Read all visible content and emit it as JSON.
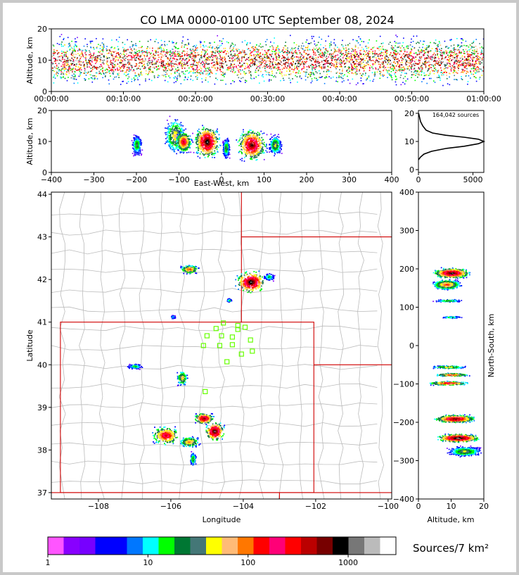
{
  "title": "CO LMA 0000-0100 UTC September 08, 2024",
  "colors": {
    "palette": [
      "#ff55ff",
      "#8800ff",
      "#7700ff",
      "#0000ff",
      "#0000ff",
      "#0077ff",
      "#00ffff",
      "#00ff00",
      "#007733",
      "#447777",
      "#ffff00",
      "#ffbb77",
      "#ff7700",
      "#ff0000",
      "#ff0077",
      "#ff0000",
      "#bb0000",
      "#770000",
      "#000000",
      "#777777",
      "#bbbbbb",
      "#ffffff"
    ],
    "state_line": "#d00000",
    "county_line": "#bbbbbb",
    "station": "#66ff00"
  },
  "chart_data": [
    {
      "type": "heatmap",
      "panel": "time-altitude",
      "ylabel": "Altitude, km",
      "xlim": [
        "00:00:00",
        "01:00:00"
      ],
      "ylim": [
        0,
        20
      ],
      "x_ticks": [
        "00:00:00",
        "00:10:00",
        "00:20:00",
        "00:30:00",
        "00:40:00",
        "00:50:00",
        "01:00:00"
      ],
      "y_ticks": [
        "0",
        "10",
        "20"
      ]
    },
    {
      "type": "heatmap",
      "panel": "east-west-altitude",
      "xlabel": "East-West, km",
      "ylabel": "Altitude, km",
      "xlim": [
        -400,
        400
      ],
      "ylim": [
        0,
        20
      ],
      "x_ticks": [
        "−400",
        "−300",
        "−200",
        "−100",
        "0",
        "100",
        "200",
        "300",
        "400"
      ],
      "y_ticks": [
        "0",
        "10",
        "20"
      ],
      "clusters": [
        {
          "x": -200,
          "z": 9,
          "w": 14,
          "h": 4,
          "level": 0.45
        },
        {
          "x": -110,
          "z": 12,
          "w": 30,
          "h": 7,
          "level": 0.55
        },
        {
          "x": -90,
          "z": 10,
          "w": 22,
          "h": 4,
          "level": 0.75
        },
        {
          "x": -35,
          "z": 10,
          "w": 35,
          "h": 6,
          "level": 0.9
        },
        {
          "x": 10,
          "z": 8,
          "w": 10,
          "h": 4,
          "level": 0.45
        },
        {
          "x": 70,
          "z": 9,
          "w": 40,
          "h": 6,
          "level": 0.85
        },
        {
          "x": 125,
          "z": 9,
          "w": 18,
          "h": 4,
          "level": 0.5
        }
      ]
    },
    {
      "type": "line",
      "panel": "altitude-histogram",
      "annotation": "164,042 sources",
      "xlim": [
        0,
        6000
      ],
      "ylim": [
        0,
        20
      ],
      "x_ticks": [
        "0",
        "5000"
      ],
      "y_ticks": [
        "0",
        "10",
        "20"
      ],
      "points": [
        [
          0,
          3.5
        ],
        [
          200,
          4.5
        ],
        [
          500,
          5.5
        ],
        [
          1200,
          6.5
        ],
        [
          2500,
          7.5
        ],
        [
          4200,
          8.3
        ],
        [
          5500,
          9.2
        ],
        [
          6000,
          10
        ],
        [
          5500,
          10.8
        ],
        [
          4200,
          11.5
        ],
        [
          2500,
          12.2
        ],
        [
          1300,
          13
        ],
        [
          700,
          14
        ],
        [
          400,
          15.5
        ],
        [
          200,
          17
        ],
        [
          80,
          19
        ],
        [
          20,
          20
        ]
      ]
    },
    {
      "type": "heatmap",
      "panel": "plan-view",
      "xlabel": "Longitude",
      "ylabel": "Latitude",
      "xlim": [
        -109.3,
        -99.9
      ],
      "ylim": [
        36.85,
        44.05
      ],
      "x_ticks": [
        "−108",
        "−106",
        "−104",
        "−102",
        "−100"
      ],
      "y_ticks": [
        "37",
        "38",
        "39",
        "40",
        "41",
        "42",
        "43",
        "44"
      ],
      "clusters": [
        {
          "lon": -105.5,
          "lat": 42.25,
          "w": 0.3,
          "h": 0.12,
          "level": 0.65
        },
        {
          "lon": -103.8,
          "lat": 41.95,
          "w": 0.45,
          "h": 0.3,
          "level": 0.9
        },
        {
          "lon": -103.3,
          "lat": 42.07,
          "w": 0.18,
          "h": 0.1,
          "level": 0.4
        },
        {
          "lon": -104.4,
          "lat": 41.52,
          "w": 0.08,
          "h": 0.05,
          "level": 0.4
        },
        {
          "lon": -105.95,
          "lat": 41.13,
          "w": 0.08,
          "h": 0.05,
          "level": 0.35
        },
        {
          "lon": -107.0,
          "lat": 39.97,
          "w": 0.25,
          "h": 0.08,
          "level": 0.4
        },
        {
          "lon": -105.7,
          "lat": 39.7,
          "w": 0.18,
          "h": 0.22,
          "level": 0.55
        },
        {
          "lon": -106.15,
          "lat": 38.35,
          "w": 0.45,
          "h": 0.25,
          "level": 0.75
        },
        {
          "lon": -105.1,
          "lat": 38.75,
          "w": 0.3,
          "h": 0.15,
          "level": 0.85
        },
        {
          "lon": -104.8,
          "lat": 38.45,
          "w": 0.3,
          "h": 0.25,
          "level": 0.9
        },
        {
          "lon": -105.5,
          "lat": 38.2,
          "w": 0.35,
          "h": 0.15,
          "level": 0.6
        },
        {
          "lon": -105.4,
          "lat": 37.8,
          "w": 0.1,
          "h": 0.2,
          "level": 0.45
        }
      ],
      "stations": [
        [
          -104.55,
          40.98
        ],
        [
          -104.15,
          40.92
        ],
        [
          -103.95,
          40.88
        ],
        [
          -104.75,
          40.85
        ],
        [
          -104.15,
          40.83
        ],
        [
          -105.0,
          40.68
        ],
        [
          -104.6,
          40.68
        ],
        [
          -104.3,
          40.65
        ],
        [
          -103.8,
          40.58
        ],
        [
          -104.65,
          40.45
        ],
        [
          -104.3,
          40.47
        ],
        [
          -105.1,
          40.45
        ],
        [
          -103.75,
          40.32
        ],
        [
          -104.05,
          40.25
        ],
        [
          -104.45,
          40.07
        ],
        [
          -105.05,
          39.37
        ]
      ]
    },
    {
      "type": "heatmap",
      "panel": "altitude-north-south",
      "xlabel": "Altitude, km",
      "ylabel": "North-South, km",
      "xlim": [
        0,
        20
      ],
      "ylim": [
        -400,
        400
      ],
      "x_ticks": [
        "0",
        "10",
        "20"
      ],
      "y_ticks": [
        "−400",
        "−300",
        "−200",
        "−100",
        "0",
        "100",
        "200",
        "300",
        "400"
      ],
      "clusters": [
        {
          "z": 10,
          "y": 190,
          "w": 6,
          "h": 15,
          "level": 0.9
        },
        {
          "z": 8.5,
          "y": 160,
          "w": 5,
          "h": 15,
          "level": 0.65
        },
        {
          "z": 9,
          "y": 118,
          "w": 5,
          "h": 4,
          "level": 0.45
        },
        {
          "z": 10,
          "y": 75,
          "w": 4,
          "h": 3,
          "level": 0.4
        },
        {
          "z": 9,
          "y": -55,
          "w": 6,
          "h": 5,
          "level": 0.55
        },
        {
          "z": 10,
          "y": -75,
          "w": 6,
          "h": 5,
          "level": 0.7
        },
        {
          "z": 9,
          "y": -97,
          "w": 7,
          "h": 6,
          "level": 0.75
        },
        {
          "z": 11,
          "y": -190,
          "w": 7,
          "h": 12,
          "level": 0.85
        },
        {
          "z": 12,
          "y": -240,
          "w": 7,
          "h": 12,
          "level": 0.95
        },
        {
          "z": 14,
          "y": -275,
          "w": 6,
          "h": 15,
          "level": 0.5
        }
      ]
    }
  ],
  "colorbar": {
    "label": "Sources/7 km²",
    "ticks": [
      "1",
      "10",
      "100",
      "1000"
    ]
  }
}
